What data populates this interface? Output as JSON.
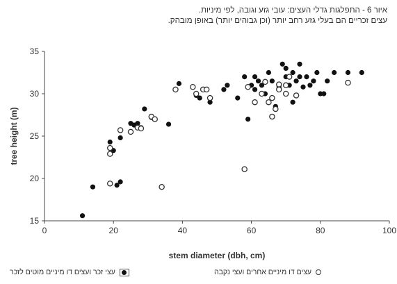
{
  "caption": {
    "line1": "איור 6 - התפלגות גדלי העצים: עובי גזע וגובה, לפי מיניות.",
    "line2": "עצים זכריים הם בעלי גזע רחב יותר (וכן גבוהים יותר) באופן מובהק."
  },
  "legend": {
    "filled_label": "עצי זכר ועצים דו מיניים מוטים לזכר",
    "open_label": "עצים דו מיניים אחרים ועצי נקבה"
  },
  "chart_data": {
    "type": "scatter",
    "xlabel": "stem diameter (dbh, cm)",
    "ylabel": "tree height (m)",
    "xlim": [
      0,
      100
    ],
    "ylim": [
      15,
      35
    ],
    "xticks": [
      0,
      20,
      40,
      60,
      80,
      100
    ],
    "yticks": [
      15,
      20,
      25,
      30,
      35
    ],
    "grid": false,
    "legend_position": "bottom",
    "series": [
      {
        "key": "filled",
        "marker": "filled-circle",
        "color": "#111111",
        "points": [
          [
            11,
            15.6
          ],
          [
            14,
            19.0
          ],
          [
            19,
            24.3
          ],
          [
            20,
            23.3
          ],
          [
            21,
            19.2
          ],
          [
            22,
            19.6
          ],
          [
            22,
            24.8
          ],
          [
            25,
            26.5
          ],
          [
            26,
            26.3
          ],
          [
            27,
            26.5
          ],
          [
            28,
            26.0
          ],
          [
            29,
            28.2
          ],
          [
            31,
            27.2
          ],
          [
            36,
            26.4
          ],
          [
            39,
            31.2
          ],
          [
            44,
            29.8
          ],
          [
            45,
            29.5
          ],
          [
            48,
            29.0
          ],
          [
            52,
            30.5
          ],
          [
            53,
            31.0
          ],
          [
            56,
            29.5
          ],
          [
            58,
            32.0
          ],
          [
            59,
            27.0
          ],
          [
            60,
            31.0
          ],
          [
            61,
            32.0
          ],
          [
            61,
            30.5
          ],
          [
            62,
            31.5
          ],
          [
            63,
            31.0
          ],
          [
            64,
            30.0
          ],
          [
            65,
            32.5
          ],
          [
            66,
            31.5
          ],
          [
            67,
            28.5
          ],
          [
            68,
            30.8
          ],
          [
            69,
            33.5
          ],
          [
            70,
            33.0
          ],
          [
            70,
            32.0
          ],
          [
            71,
            31.0
          ],
          [
            72,
            29.0
          ],
          [
            72,
            32.5
          ],
          [
            73,
            31.5
          ],
          [
            74,
            32.0
          ],
          [
            74,
            33.5
          ],
          [
            75,
            30.8
          ],
          [
            76,
            32.0
          ],
          [
            77,
            31.0
          ],
          [
            78,
            31.5
          ],
          [
            79,
            32.5
          ],
          [
            80,
            30.0
          ],
          [
            81,
            30.0
          ],
          [
            82,
            31.5
          ],
          [
            84,
            32.5
          ],
          [
            88,
            32.5
          ],
          [
            92,
            32.5
          ]
        ]
      },
      {
        "key": "open",
        "marker": "open-circle",
        "color": "#333333",
        "points": [
          [
            19,
            19.4
          ],
          [
            19,
            22.9
          ],
          [
            19,
            23.6
          ],
          [
            22,
            25.7
          ],
          [
            25,
            25.5
          ],
          [
            27,
            26.0
          ],
          [
            28,
            25.9
          ],
          [
            31,
            27.3
          ],
          [
            32,
            27.0
          ],
          [
            34,
            19.0
          ],
          [
            38,
            30.5
          ],
          [
            43,
            30.8
          ],
          [
            44,
            30.0
          ],
          [
            46,
            30.5
          ],
          [
            47,
            30.5
          ],
          [
            48,
            29.5
          ],
          [
            58,
            21.1
          ],
          [
            59,
            30.8
          ],
          [
            61,
            29.0
          ],
          [
            63,
            30.0
          ],
          [
            64,
            31.4
          ],
          [
            65,
            29.0
          ],
          [
            66,
            29.5
          ],
          [
            66,
            27.3
          ],
          [
            67,
            28.2
          ],
          [
            68,
            31.1
          ],
          [
            68,
            30.5
          ],
          [
            70,
            31.0
          ],
          [
            70,
            30.0
          ],
          [
            71,
            32.0
          ],
          [
            73,
            29.8
          ],
          [
            88,
            31.3
          ]
        ]
      }
    ]
  }
}
